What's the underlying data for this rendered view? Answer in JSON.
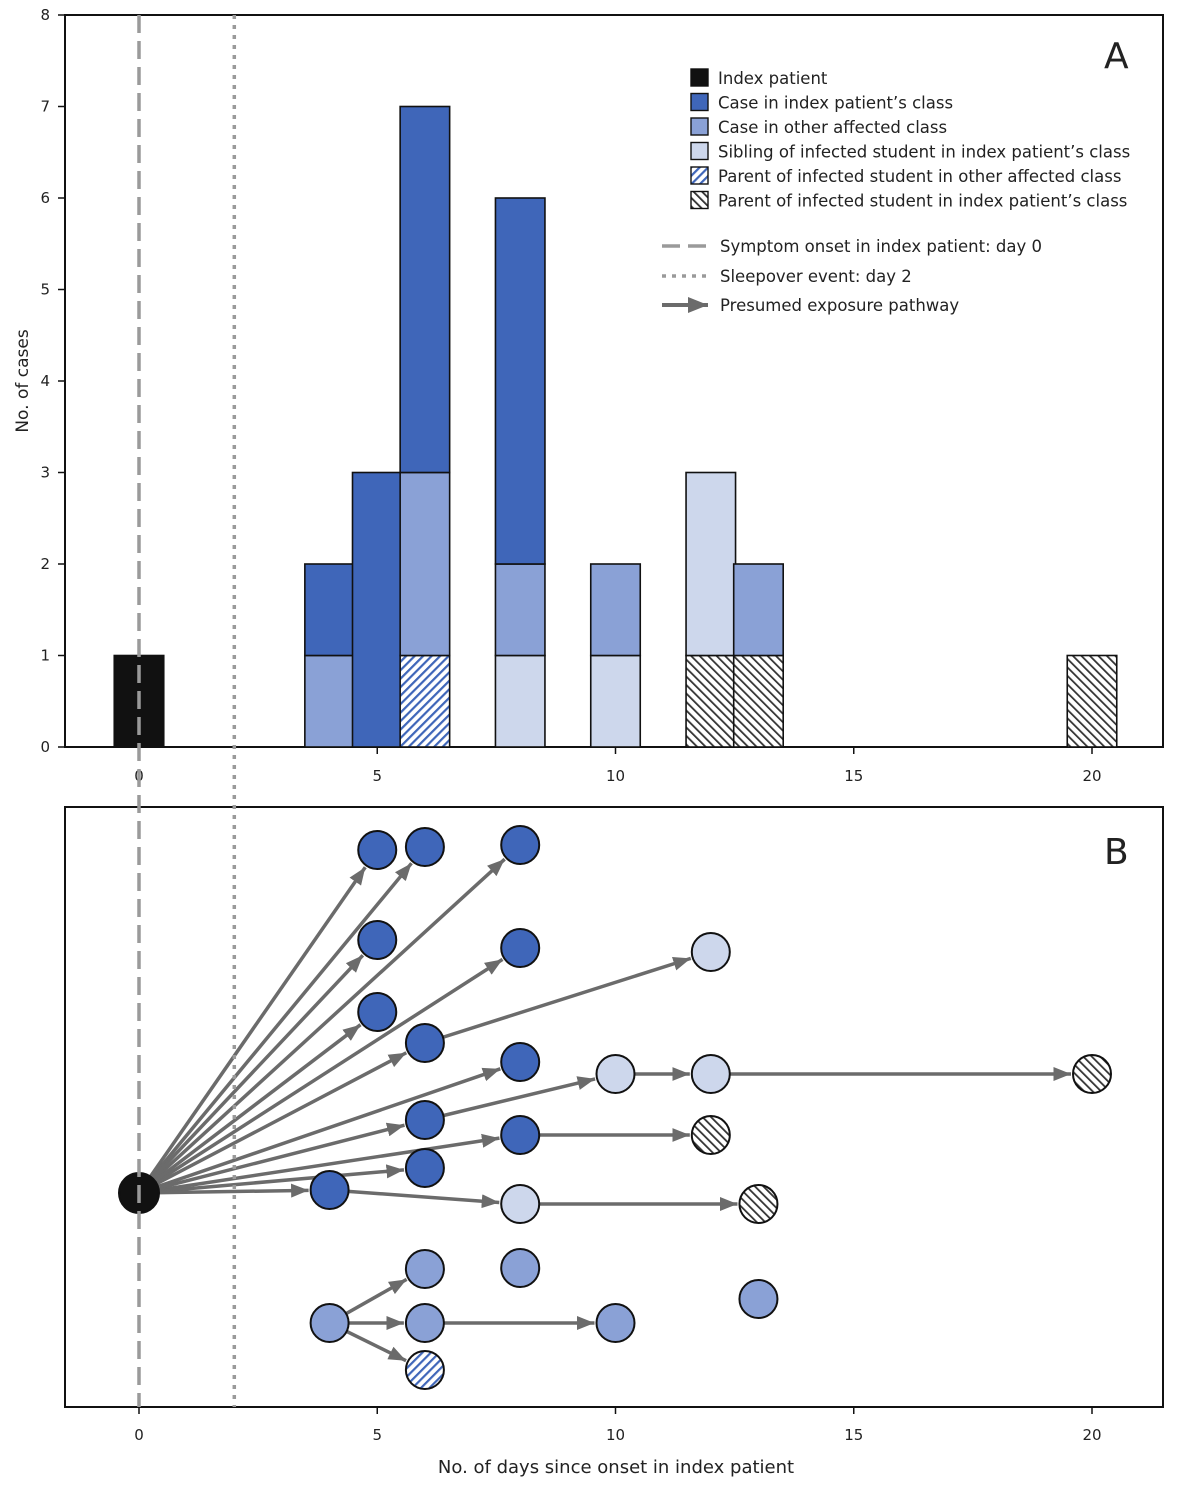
{
  "chart_data": [
    {
      "panel": "A",
      "type": "bar",
      "stacked": true,
      "ylabel": "No. of cases",
      "ylim": [
        0,
        8
      ],
      "xlim": [
        -1.5,
        21.5
      ],
      "xticks": [
        0,
        5,
        10,
        15,
        20
      ],
      "yticks": [
        0,
        1,
        2,
        3,
        4,
        5,
        6,
        7,
        8
      ],
      "categories": [
        0,
        4,
        5,
        6,
        8,
        10,
        12,
        13,
        20
      ],
      "series": [
        {
          "name": "Index patient",
          "key": "index",
          "values": [
            1,
            0,
            0,
            0,
            0,
            0,
            0,
            0,
            0
          ]
        },
        {
          "name": "Parent of infected student in other affected class",
          "key": "parent_other",
          "values": [
            0,
            0,
            0,
            1,
            0,
            0,
            0,
            0,
            0
          ]
        },
        {
          "name": "Parent of infected student in index patient’s class",
          "key": "parent_index",
          "values": [
            0,
            0,
            0,
            0,
            0,
            0,
            1,
            1,
            1
          ]
        },
        {
          "name": "Sibling of infected student in index patient’s class",
          "key": "sibling",
          "values": [
            0,
            0,
            0,
            0,
            1,
            1,
            2,
            0,
            0
          ]
        },
        {
          "name": "Case in other affected class",
          "key": "other_class",
          "values": [
            0,
            1,
            0,
            2,
            1,
            1,
            0,
            1,
            0
          ]
        },
        {
          "name": "Case in index patient’s class",
          "key": "index_class",
          "values": [
            0,
            1,
            3,
            4,
            4,
            0,
            0,
            0,
            0
          ]
        }
      ],
      "legend_order": [
        "index",
        "index_class",
        "other_class",
        "sibling",
        "parent_other",
        "parent_index"
      ],
      "legend_placement": "top-right",
      "reference_lines": [
        {
          "name": "Symptom onset in index patient: day 0",
          "day": 0,
          "style": "dashed"
        },
        {
          "name": "Sleepover event: day 2",
          "day": 2,
          "style": "dotted"
        }
      ],
      "arrow_legend": "Presumed exposure pathway"
    },
    {
      "panel": "B",
      "type": "network",
      "xlabel": "No. of days since onset in index patient",
      "xticks": [
        0,
        5,
        10,
        15,
        20
      ],
      "nodes": [
        {
          "id": "n0",
          "day": 0,
          "cat": "index"
        },
        {
          "id": "a1",
          "day": 5,
          "cat": "index_class"
        },
        {
          "id": "a2",
          "day": 6,
          "cat": "index_class"
        },
        {
          "id": "a3",
          "day": 8,
          "cat": "index_class"
        },
        {
          "id": "a4",
          "day": 5,
          "cat": "index_class"
        },
        {
          "id": "a5",
          "day": 8,
          "cat": "index_class"
        },
        {
          "id": "a6",
          "day": 5,
          "cat": "index_class"
        },
        {
          "id": "a7",
          "day": 6,
          "cat": "index_class"
        },
        {
          "id": "a8",
          "day": 8,
          "cat": "index_class"
        },
        {
          "id": "a9",
          "day": 6,
          "cat": "index_class"
        },
        {
          "id": "a10",
          "day": 8,
          "cat": "index_class"
        },
        {
          "id": "a11",
          "day": 6,
          "cat": "index_class"
        },
        {
          "id": "a12",
          "day": 4,
          "cat": "index_class"
        },
        {
          "id": "s1",
          "day": 12,
          "cat": "sibling"
        },
        {
          "id": "s2",
          "day": 10,
          "cat": "sibling"
        },
        {
          "id": "s3",
          "day": 12,
          "cat": "sibling"
        },
        {
          "id": "s4",
          "day": 8,
          "cat": "sibling"
        },
        {
          "id": "p1",
          "day": 20,
          "cat": "parent_index"
        },
        {
          "id": "p2",
          "day": 12,
          "cat": "parent_index"
        },
        {
          "id": "p3",
          "day": 13,
          "cat": "parent_index"
        },
        {
          "id": "o1",
          "day": 4,
          "cat": "other_class"
        },
        {
          "id": "o2",
          "day": 6,
          "cat": "other_class"
        },
        {
          "id": "o3",
          "day": 6,
          "cat": "other_class"
        },
        {
          "id": "o4",
          "day": 10,
          "cat": "other_class"
        },
        {
          "id": "o5",
          "day": 8,
          "cat": "other_class"
        },
        {
          "id": "o6",
          "day": 13,
          "cat": "other_class"
        },
        {
          "id": "q1",
          "day": 6,
          "cat": "parent_other"
        }
      ],
      "edges": [
        [
          "n0",
          "a1"
        ],
        [
          "n0",
          "a2"
        ],
        [
          "n0",
          "a3"
        ],
        [
          "n0",
          "a4"
        ],
        [
          "n0",
          "a5"
        ],
        [
          "n0",
          "a6"
        ],
        [
          "n0",
          "a7"
        ],
        [
          "n0",
          "a8"
        ],
        [
          "n0",
          "a9"
        ],
        [
          "n0",
          "a10"
        ],
        [
          "n0",
          "a11"
        ],
        [
          "n0",
          "a12"
        ],
        [
          "a7",
          "s1"
        ],
        [
          "a9",
          "s2"
        ],
        [
          "s2",
          "s3"
        ],
        [
          "s3",
          "p1"
        ],
        [
          "a10",
          "p2"
        ],
        [
          "a12",
          "s4"
        ],
        [
          "s4",
          "p3"
        ],
        [
          "o1",
          "o2"
        ],
        [
          "o1",
          "o3"
        ],
        [
          "o1",
          "q1"
        ],
        [
          "o3",
          "o4"
        ]
      ]
    }
  ],
  "panel_labels": {
    "a": "A",
    "b": "B"
  },
  "colors": {
    "index": "#111111",
    "index_class": "#3f66b9",
    "other_class": "#8aa1d6",
    "sibling": "#cdd7ec",
    "parent_other_stripe": "#3f66b9",
    "parent_index_stripe": "#333333",
    "edge": "#6b6b6b",
    "ref_line": "#9a9a9a"
  }
}
